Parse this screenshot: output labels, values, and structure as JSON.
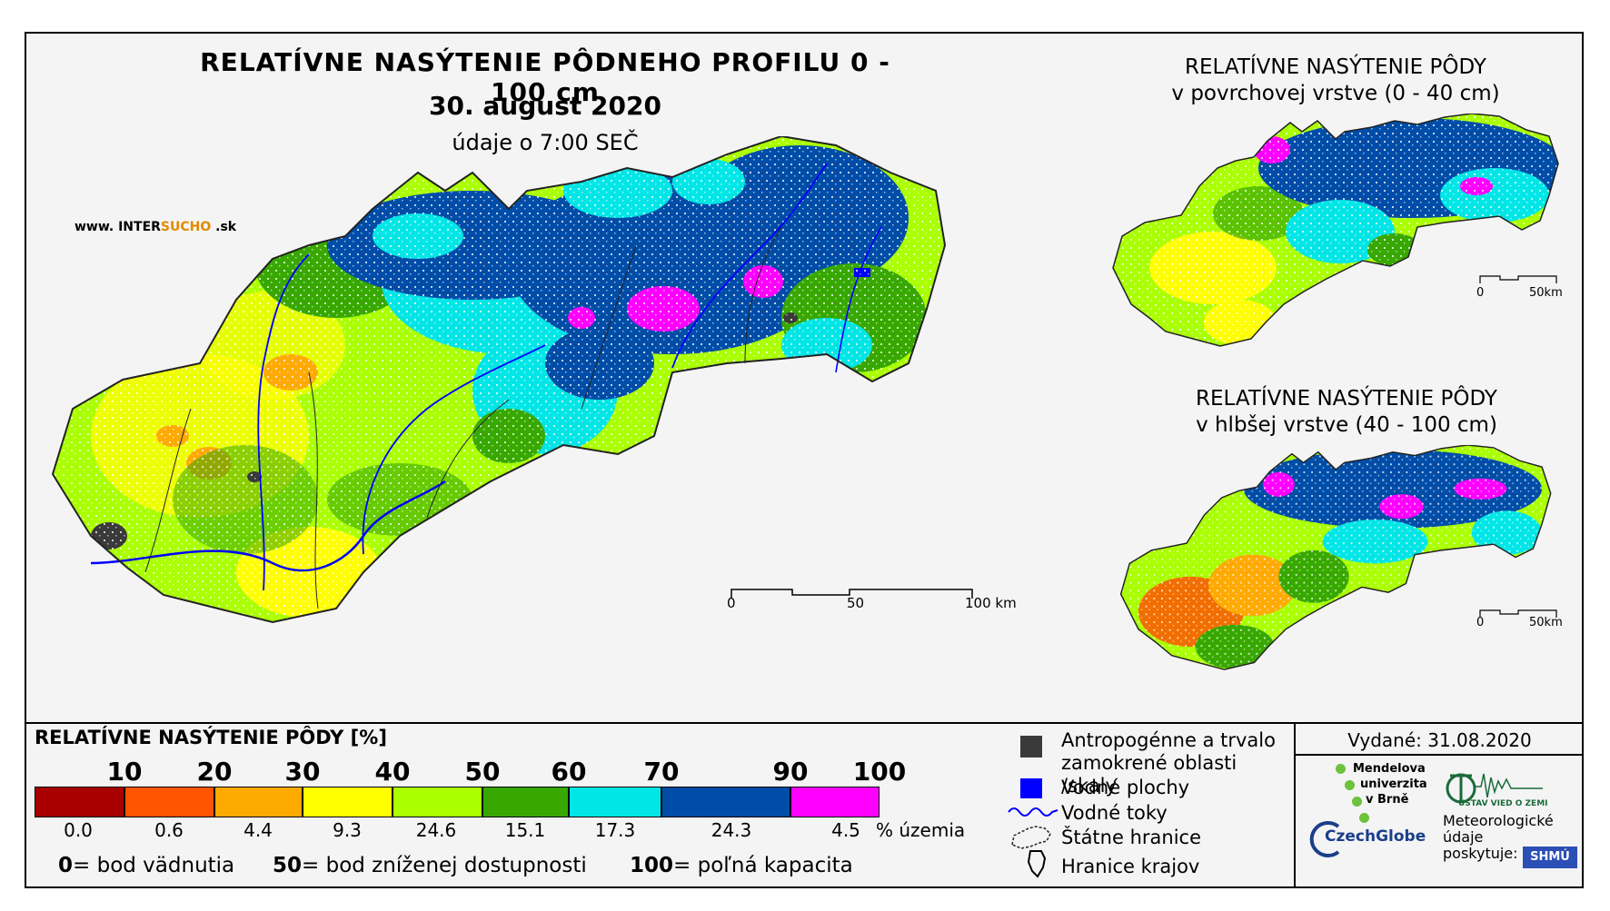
{
  "title": {
    "main": "RELATÍVNE NASÝTENIE PÔDNEHO PROFILU 0 - 100 cm",
    "date": "30. august 2020",
    "time": "údaje o 7:00 SEČ"
  },
  "watermark": {
    "prefix": "www. INTER",
    "highlight": "SUCHO",
    "suffix": " .sk"
  },
  "main_map": {
    "scale": {
      "labels": [
        "0",
        "50",
        "100 km"
      ]
    }
  },
  "inset_top": {
    "title_line1": "RELATÍVNE NASÝTENIE PÔDY",
    "title_line2": "v povrchovej vrstve (0 - 40 cm)",
    "scale": {
      "labels": [
        "0",
        "50km"
      ]
    }
  },
  "inset_bottom": {
    "title_line1": "RELATÍVNE NASÝTENIE PÔDY",
    "title_line2": "v hlbšej vrstve (40 - 100 cm)",
    "scale": {
      "labels": [
        "0",
        "50km"
      ]
    }
  },
  "legend": {
    "title": "RELATÍVNE NASÝTENIE PÔDY [%]",
    "thresholds": [
      "10",
      "20",
      "30",
      "40",
      "50",
      "60",
      "70",
      "90",
      "100"
    ],
    "classes": [
      {
        "color": "#a80000",
        "percent": "0.0"
      },
      {
        "color": "#ff5500",
        "percent": "0.6"
      },
      {
        "color": "#ffaa00",
        "percent": "4.4"
      },
      {
        "color": "#ffff00",
        "percent": "9.3"
      },
      {
        "color": "#aaff00",
        "percent": "24.6"
      },
      {
        "color": "#38a800",
        "percent": "15.1"
      },
      {
        "color": "#00e6e6",
        "percent": "17.3"
      },
      {
        "color": "#004da8",
        "percent": "24.3"
      },
      {
        "color": "#ff00ff",
        "percent": "4.5"
      }
    ],
    "percent_unit": "% územia",
    "definitions": [
      {
        "value": "0",
        "text": "= bod vädnutia"
      },
      {
        "value": "50",
        "text": "= bod zníženej dostupnosti"
      },
      {
        "value": "100",
        "text": "= poľná kapacita"
      }
    ],
    "symbols": {
      "anthropogenic": "Antropogénne a trvalo zamokrené oblasti /skaly",
      "water_bodies": "Vodné plochy",
      "rivers": "Vodné toky",
      "state_border": "Štátne hranice",
      "region_border": "Hranice krajov"
    }
  },
  "issued": "Vydané: 31.08.2020",
  "credits": {
    "mendel": [
      "Mendelova",
      "univerzita",
      "v Brně"
    ],
    "ustav": "ÚSTAV VIED O ZEMI",
    "czechglobe": "CzechGlobe",
    "meteo": [
      "Meteorologické",
      "údaje",
      "poskytuje:"
    ],
    "shmu": "SHMÚ"
  },
  "colors": {
    "anthropogenic": "#3a3a3a",
    "water": "#0000ff",
    "river": "#0000ff"
  }
}
